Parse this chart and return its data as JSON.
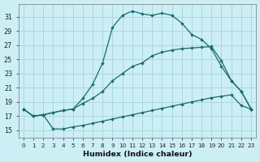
{
  "xlabel": "Humidex (Indice chaleur)",
  "bg_color": "#cceef5",
  "grid_color": "#aad8e0",
  "line_color": "#1a6b6b",
  "xlim": [
    -0.5,
    23.5
  ],
  "ylim": [
    14.0,
    32.8
  ],
  "yticks": [
    15,
    17,
    19,
    21,
    23,
    25,
    27,
    29,
    31
  ],
  "xticks": [
    0,
    1,
    2,
    3,
    4,
    5,
    6,
    7,
    8,
    9,
    10,
    11,
    12,
    13,
    14,
    15,
    16,
    17,
    18,
    19,
    20,
    21,
    22,
    23
  ],
  "series": [
    {
      "x": [
        0,
        1,
        2,
        3,
        4,
        5,
        6,
        7,
        8,
        9,
        10,
        11,
        12,
        13,
        14,
        15,
        16,
        17,
        18,
        19,
        20,
        21,
        22,
        23
      ],
      "y": [
        18.0,
        17.0,
        17.2,
        17.5,
        17.8,
        18.0,
        19.5,
        21.5,
        24.5,
        29.5,
        31.2,
        31.8,
        31.4,
        31.2,
        31.5,
        31.2,
        30.1,
        28.5,
        27.8,
        26.5,
        24.0,
        22.0,
        20.5,
        18.0
      ]
    },
    {
      "x": [
        0,
        1,
        2,
        3,
        4,
        5,
        6,
        7,
        8,
        9,
        10,
        11,
        12,
        13,
        14,
        15,
        16,
        17,
        18,
        19,
        20,
        21,
        22,
        23
      ],
      "y": [
        18.0,
        17.0,
        17.2,
        17.5,
        17.8,
        18.0,
        18.8,
        19.5,
        20.5,
        22.0,
        23.0,
        24.0,
        24.5,
        25.5,
        26.0,
        26.3,
        26.5,
        26.6,
        26.7,
        26.8,
        24.8,
        22.0,
        20.5,
        18.0
      ]
    },
    {
      "x": [
        0,
        1,
        2,
        3,
        4,
        5,
        6,
        7,
        8,
        9,
        10,
        11,
        12,
        13,
        14,
        15,
        16,
        17,
        18,
        19,
        20,
        21,
        22,
        23
      ],
      "y": [
        18.0,
        17.0,
        17.2,
        15.2,
        15.2,
        15.5,
        15.7,
        16.0,
        16.3,
        16.6,
        16.9,
        17.2,
        17.5,
        17.8,
        18.1,
        18.4,
        18.7,
        19.0,
        19.3,
        19.6,
        19.8,
        20.0,
        18.5,
        18.0
      ]
    }
  ]
}
